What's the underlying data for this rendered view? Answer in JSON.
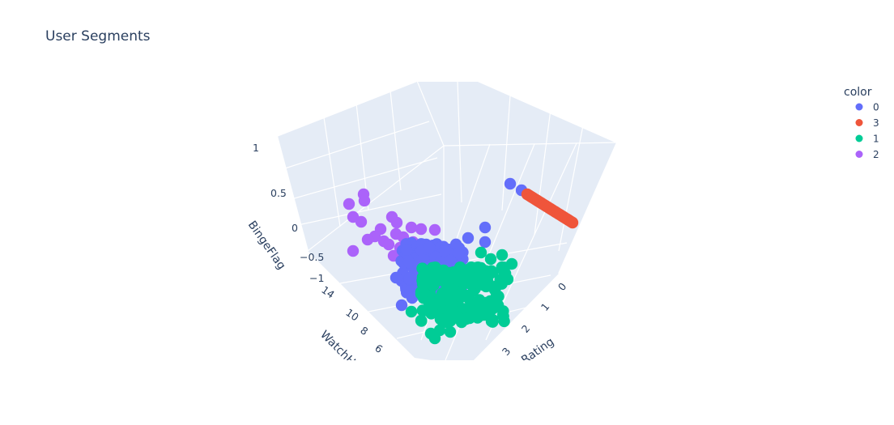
{
  "chart_data": {
    "type": "scatter",
    "title": "User Segments",
    "axes": {
      "x": {
        "label": "Rating",
        "ticks": [
          "0",
          "1",
          "2",
          "3"
        ]
      },
      "y": {
        "label": "WatchHours",
        "ticks": [
          "14",
          "10",
          "8",
          "6"
        ]
      },
      "z": {
        "label": "BingeFlag",
        "ticks": [
          "1",
          "0.5",
          "0",
          "−0.5",
          "−1"
        ]
      }
    },
    "legend": {
      "title": "color",
      "placement": "top-right",
      "entries": [
        "0",
        "3",
        "1",
        "2"
      ]
    },
    "series": [
      {
        "name": "0",
        "color": "#636efa"
      },
      {
        "name": "3",
        "color": "#ef553b"
      },
      {
        "name": "1",
        "color": "#00cc96"
      },
      {
        "name": "2",
        "color": "#ab63fa"
      }
    ]
  }
}
